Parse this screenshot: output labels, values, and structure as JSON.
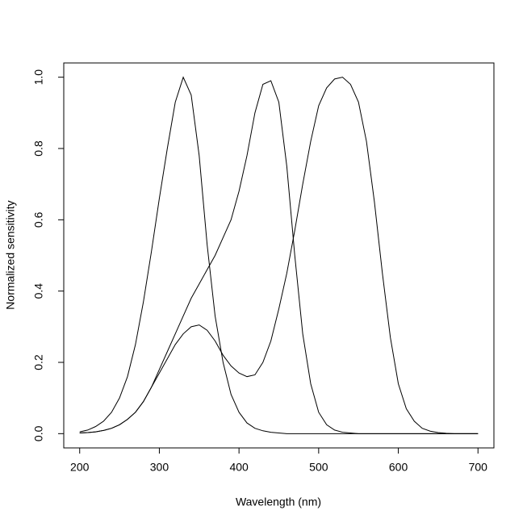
{
  "chart_data": {
    "type": "line",
    "x_label": "Wavelength (nm)",
    "y_label": "Normalized sensitivity",
    "x": [
      200,
      210,
      220,
      230,
      240,
      250,
      260,
      270,
      280,
      290,
      300,
      310,
      320,
      330,
      340,
      350,
      360,
      370,
      380,
      390,
      400,
      410,
      420,
      430,
      440,
      450,
      460,
      470,
      480,
      490,
      500,
      510,
      520,
      530,
      540,
      550,
      560,
      570,
      580,
      590,
      600,
      610,
      620,
      630,
      640,
      650,
      660,
      670,
      680,
      690,
      700
    ],
    "series": [
      {
        "color": "#000000",
        "values": [
          0.005,
          0.01,
          0.02,
          0.035,
          0.06,
          0.1,
          0.16,
          0.25,
          0.37,
          0.51,
          0.66,
          0.8,
          0.93,
          1.0,
          0.95,
          0.78,
          0.53,
          0.33,
          0.2,
          0.11,
          0.06,
          0.03,
          0.015,
          0.008,
          0.004,
          0.002,
          0,
          0,
          0,
          0,
          0,
          0,
          0,
          0,
          0,
          0,
          0,
          0,
          0,
          0,
          0,
          0,
          0,
          0,
          0,
          0,
          0,
          0,
          0,
          0,
          0
        ]
      },
      {
        "color": "#000000",
        "values": [
          0.002,
          0.003,
          0.005,
          0.009,
          0.015,
          0.025,
          0.04,
          0.06,
          0.09,
          0.13,
          0.18,
          0.23,
          0.28,
          0.33,
          0.38,
          0.42,
          0.46,
          0.5,
          0.55,
          0.6,
          0.68,
          0.78,
          0.9,
          0.98,
          0.99,
          0.93,
          0.75,
          0.5,
          0.28,
          0.14,
          0.06,
          0.025,
          0.01,
          0.004,
          0.002,
          0,
          0,
          0,
          0,
          0,
          0,
          0,
          0,
          0,
          0,
          0,
          0,
          0,
          0,
          0,
          0
        ]
      },
      {
        "color": "#000000",
        "values": [
          0.002,
          0.003,
          0.005,
          0.009,
          0.015,
          0.025,
          0.04,
          0.06,
          0.09,
          0.13,
          0.17,
          0.21,
          0.25,
          0.28,
          0.3,
          0.305,
          0.29,
          0.26,
          0.22,
          0.19,
          0.17,
          0.16,
          0.165,
          0.2,
          0.26,
          0.35,
          0.45,
          0.57,
          0.7,
          0.82,
          0.92,
          0.97,
          0.995,
          1.0,
          0.98,
          0.93,
          0.82,
          0.65,
          0.45,
          0.27,
          0.14,
          0.07,
          0.035,
          0.015,
          0.007,
          0.003,
          0.001,
          0,
          0,
          0,
          0
        ]
      }
    ],
    "xlim": [
      180,
      720
    ],
    "ylim": [
      -0.04,
      1.04
    ],
    "xticks": [
      200,
      300,
      400,
      500,
      600,
      700
    ],
    "yticks": [
      {
        "value": 0,
        "label": "0.0"
      },
      0.2,
      0.4,
      0.6,
      0.8,
      {
        "value": 1,
        "label": "1.0"
      }
    ]
  }
}
